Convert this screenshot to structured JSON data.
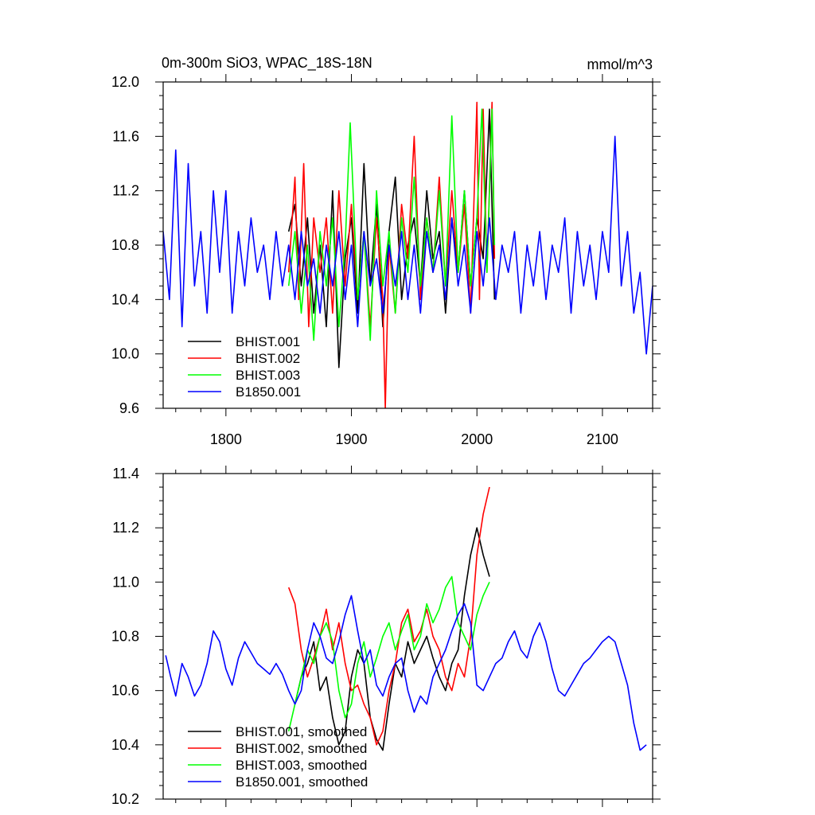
{
  "chart_data": [
    {
      "type": "line",
      "title": "0m-300m SiO3, WPAC_18S-18N",
      "units": "mmol/m^3",
      "xlim": [
        1750,
        2140
      ],
      "ylim": [
        9.6,
        12.0
      ],
      "x_ticks": [
        1800,
        1900,
        2000,
        2100
      ],
      "y_ticks": [
        9.6,
        10.0,
        10.4,
        10.8,
        11.2,
        11.6,
        12.0
      ],
      "y_tick_labels": [
        "9.6",
        "10.0",
        "10.4",
        "10.8",
        "11.2",
        "11.6",
        "12.0"
      ],
      "legend_position": "bottom-left",
      "series": [
        {
          "name": "BHIST.001",
          "color": "#000000",
          "x": [
            1850,
            1855,
            1860,
            1865,
            1870,
            1875,
            1880,
            1885,
            1890,
            1895,
            1900,
            1905,
            1910,
            1915,
            1920,
            1925,
            1930,
            1935,
            1940,
            1945,
            1950,
            1955,
            1960,
            1965,
            1970,
            1975,
            1980,
            1985,
            1990,
            1995,
            2000,
            2005,
            2010,
            2014
          ],
          "y": [
            10.9,
            11.1,
            10.5,
            11.0,
            10.3,
            10.8,
            10.2,
            11.2,
            9.9,
            10.7,
            11.0,
            10.3,
            11.4,
            10.5,
            11.1,
            10.2,
            10.9,
            11.3,
            10.4,
            10.8,
            11.0,
            10.5,
            11.2,
            10.7,
            10.9,
            10.3,
            11.0,
            10.6,
            11.2,
            10.5,
            11.0,
            10.7,
            11.8,
            10.4
          ]
        },
        {
          "name": "BHIST.002",
          "color": "#ff0000",
          "x": [
            1850,
            1855,
            1858,
            1862,
            1866,
            1870,
            1875,
            1880,
            1885,
            1890,
            1895,
            1900,
            1905,
            1910,
            1915,
            1920,
            1925,
            1927,
            1930,
            1935,
            1940,
            1945,
            1950,
            1955,
            1960,
            1965,
            1970,
            1975,
            1980,
            1985,
            1990,
            1995,
            2000,
            2002,
            2005,
            2008,
            2012,
            2014
          ],
          "y": [
            10.6,
            11.3,
            10.4,
            11.4,
            10.2,
            11.0,
            10.6,
            11.0,
            10.3,
            11.2,
            10.5,
            11.1,
            10.4,
            10.9,
            10.2,
            11.0,
            10.4,
            9.6,
            10.8,
            10.3,
            11.1,
            10.7,
            11.6,
            10.4,
            11.0,
            10.6,
            11.3,
            10.5,
            11.2,
            10.6,
            11.1,
            10.3,
            11.85,
            10.4,
            11.8,
            10.6,
            11.85,
            10.7
          ]
        },
        {
          "name": "BHIST.003",
          "color": "#00ff00",
          "x": [
            1850,
            1855,
            1860,
            1865,
            1870,
            1875,
            1880,
            1885,
            1890,
            1895,
            1899,
            1905,
            1910,
            1915,
            1920,
            1925,
            1930,
            1935,
            1940,
            1945,
            1950,
            1955,
            1960,
            1965,
            1970,
            1975,
            1980,
            1985,
            1990,
            1995,
            2000,
            2004,
            2008,
            2012,
            2014
          ],
          "y": [
            10.5,
            10.9,
            10.3,
            10.8,
            10.1,
            10.9,
            10.5,
            11.0,
            10.2,
            10.8,
            11.7,
            10.4,
            10.9,
            10.1,
            11.2,
            10.5,
            10.9,
            10.3,
            11.0,
            10.6,
            11.3,
            10.5,
            11.0,
            10.6,
            11.2,
            10.5,
            11.75,
            10.6,
            11.2,
            10.5,
            11.0,
            11.8,
            10.6,
            11.8,
            10.8
          ]
        },
        {
          "name": "B1850.001",
          "color": "#0000ff",
          "x": [
            1750,
            1755,
            1760,
            1765,
            1770,
            1775,
            1780,
            1785,
            1790,
            1795,
            1800,
            1805,
            1810,
            1815,
            1820,
            1825,
            1830,
            1835,
            1840,
            1845,
            1850,
            1855,
            1860,
            1865,
            1870,
            1875,
            1880,
            1885,
            1890,
            1895,
            1900,
            1905,
            1910,
            1915,
            1920,
            1925,
            1930,
            1935,
            1940,
            1945,
            1950,
            1955,
            1960,
            1965,
            1970,
            1975,
            1980,
            1985,
            1990,
            1995,
            2000,
            2005,
            2010,
            2015,
            2020,
            2025,
            2030,
            2035,
            2040,
            2045,
            2050,
            2055,
            2060,
            2065,
            2070,
            2075,
            2080,
            2085,
            2090,
            2095,
            2100,
            2105,
            2110,
            2115,
            2120,
            2125,
            2130,
            2135,
            2140
          ],
          "y": [
            10.9,
            10.4,
            11.5,
            10.2,
            11.4,
            10.5,
            10.9,
            10.3,
            11.2,
            10.6,
            11.2,
            10.3,
            10.9,
            10.5,
            11.0,
            10.6,
            10.8,
            10.4,
            10.9,
            10.5,
            10.8,
            10.4,
            10.9,
            10.5,
            10.7,
            10.3,
            10.8,
            10.5,
            10.9,
            10.4,
            10.8,
            10.2,
            10.9,
            10.5,
            10.7,
            10.3,
            10.8,
            10.5,
            10.9,
            10.4,
            10.8,
            10.3,
            10.9,
            10.6,
            10.8,
            10.4,
            11.0,
            10.5,
            10.8,
            10.3,
            10.9,
            10.5,
            11.0,
            10.4,
            10.8,
            10.6,
            10.9,
            10.3,
            10.8,
            10.5,
            10.9,
            10.4,
            10.8,
            10.6,
            11.0,
            10.3,
            10.9,
            10.5,
            10.8,
            10.4,
            10.9,
            10.6,
            11.6,
            10.5,
            10.9,
            10.3,
            10.6,
            10.0,
            10.5
          ]
        }
      ]
    },
    {
      "type": "line",
      "title": "",
      "xlim": [
        1750,
        2140
      ],
      "ylim": [
        10.2,
        11.4
      ],
      "x_ticks": [
        1800,
        1900,
        2000,
        2100
      ],
      "y_ticks": [
        10.2,
        10.4,
        10.6,
        10.8,
        11.0,
        11.2,
        11.4
      ],
      "y_tick_labels": [
        "10.2",
        "10.4",
        "10.6",
        "10.8",
        "11.0",
        "11.2",
        "11.4"
      ],
      "legend_position": "bottom-left",
      "series": [
        {
          "name": "BHIST.001, smoothed",
          "color": "#000000",
          "x": [
            1855,
            1860,
            1865,
            1870,
            1875,
            1880,
            1885,
            1890,
            1895,
            1900,
            1905,
            1910,
            1915,
            1920,
            1925,
            1930,
            1935,
            1940,
            1945,
            1950,
            1955,
            1960,
            1965,
            1970,
            1975,
            1980,
            1985,
            1990,
            1995,
            2000,
            2005,
            2010
          ],
          "y": [
            10.55,
            10.65,
            10.7,
            10.78,
            10.6,
            10.65,
            10.5,
            10.4,
            10.45,
            10.65,
            10.75,
            10.7,
            10.5,
            10.42,
            10.38,
            10.55,
            10.7,
            10.65,
            10.78,
            10.7,
            10.75,
            10.8,
            10.72,
            10.65,
            10.6,
            10.7,
            10.75,
            10.95,
            11.1,
            11.2,
            11.1,
            11.02
          ]
        },
        {
          "name": "BHIST.002, smoothed",
          "color": "#ff0000",
          "x": [
            1850,
            1855,
            1860,
            1865,
            1870,
            1875,
            1880,
            1885,
            1890,
            1895,
            1900,
            1905,
            1910,
            1915,
            1920,
            1925,
            1930,
            1935,
            1940,
            1945,
            1950,
            1955,
            1960,
            1965,
            1970,
            1975,
            1980,
            1985,
            1990,
            1995,
            2000,
            2005,
            2010
          ],
          "y": [
            10.98,
            10.92,
            10.75,
            10.65,
            10.72,
            10.8,
            10.9,
            10.75,
            10.85,
            10.7,
            10.6,
            10.62,
            10.55,
            10.5,
            10.4,
            10.45,
            10.6,
            10.7,
            10.85,
            10.9,
            10.78,
            10.82,
            10.9,
            10.8,
            10.75,
            10.65,
            10.6,
            10.7,
            10.65,
            10.8,
            11.1,
            11.25,
            11.35
          ]
        },
        {
          "name": "BHIST.003, smoothed",
          "color": "#00ff00",
          "x": [
            1850,
            1855,
            1860,
            1865,
            1870,
            1875,
            1880,
            1885,
            1890,
            1895,
            1900,
            1905,
            1910,
            1915,
            1920,
            1925,
            1930,
            1935,
            1940,
            1945,
            1950,
            1955,
            1960,
            1965,
            1970,
            1975,
            1980,
            1985,
            1990,
            1995,
            2000,
            2005,
            2010
          ],
          "y": [
            10.45,
            10.55,
            10.65,
            10.75,
            10.7,
            10.8,
            10.85,
            10.78,
            10.6,
            10.5,
            10.55,
            10.7,
            10.78,
            10.65,
            10.72,
            10.8,
            10.85,
            10.75,
            10.82,
            10.88,
            10.75,
            10.8,
            10.92,
            10.85,
            10.9,
            10.98,
            11.02,
            10.85,
            10.8,
            10.75,
            10.88,
            10.95,
            11.0
          ]
        },
        {
          "name": "B1850.001, smoothed",
          "color": "#0000ff",
          "x": [
            1752,
            1756,
            1760,
            1765,
            1770,
            1775,
            1780,
            1785,
            1790,
            1795,
            1800,
            1805,
            1810,
            1815,
            1820,
            1825,
            1830,
            1835,
            1840,
            1845,
            1850,
            1855,
            1860,
            1865,
            1870,
            1875,
            1880,
            1885,
            1890,
            1895,
            1900,
            1905,
            1910,
            1915,
            1920,
            1925,
            1930,
            1935,
            1940,
            1945,
            1950,
            1955,
            1960,
            1965,
            1970,
            1975,
            1980,
            1985,
            1990,
            1995,
            2000,
            2005,
            2010,
            2015,
            2020,
            2025,
            2030,
            2035,
            2040,
            2045,
            2050,
            2055,
            2060,
            2065,
            2070,
            2075,
            2080,
            2085,
            2090,
            2095,
            2100,
            2105,
            2110,
            2115,
            2120,
            2125,
            2130,
            2135
          ],
          "y": [
            10.73,
            10.65,
            10.58,
            10.7,
            10.65,
            10.58,
            10.62,
            10.7,
            10.82,
            10.78,
            10.68,
            10.62,
            10.72,
            10.78,
            10.74,
            10.7,
            10.68,
            10.66,
            10.7,
            10.66,
            10.6,
            10.55,
            10.6,
            10.75,
            10.85,
            10.8,
            10.72,
            10.7,
            10.78,
            10.88,
            10.95,
            10.82,
            10.7,
            10.75,
            10.62,
            10.58,
            10.65,
            10.7,
            10.72,
            10.6,
            10.52,
            10.58,
            10.55,
            10.65,
            10.7,
            10.75,
            10.82,
            10.88,
            10.92,
            10.85,
            10.62,
            10.6,
            10.65,
            10.7,
            10.72,
            10.78,
            10.82,
            10.75,
            10.72,
            10.8,
            10.85,
            10.78,
            10.68,
            10.6,
            10.58,
            10.62,
            10.66,
            10.7,
            10.72,
            10.75,
            10.78,
            10.8,
            10.78,
            10.7,
            10.62,
            10.48,
            10.38,
            10.4
          ]
        }
      ]
    }
  ]
}
